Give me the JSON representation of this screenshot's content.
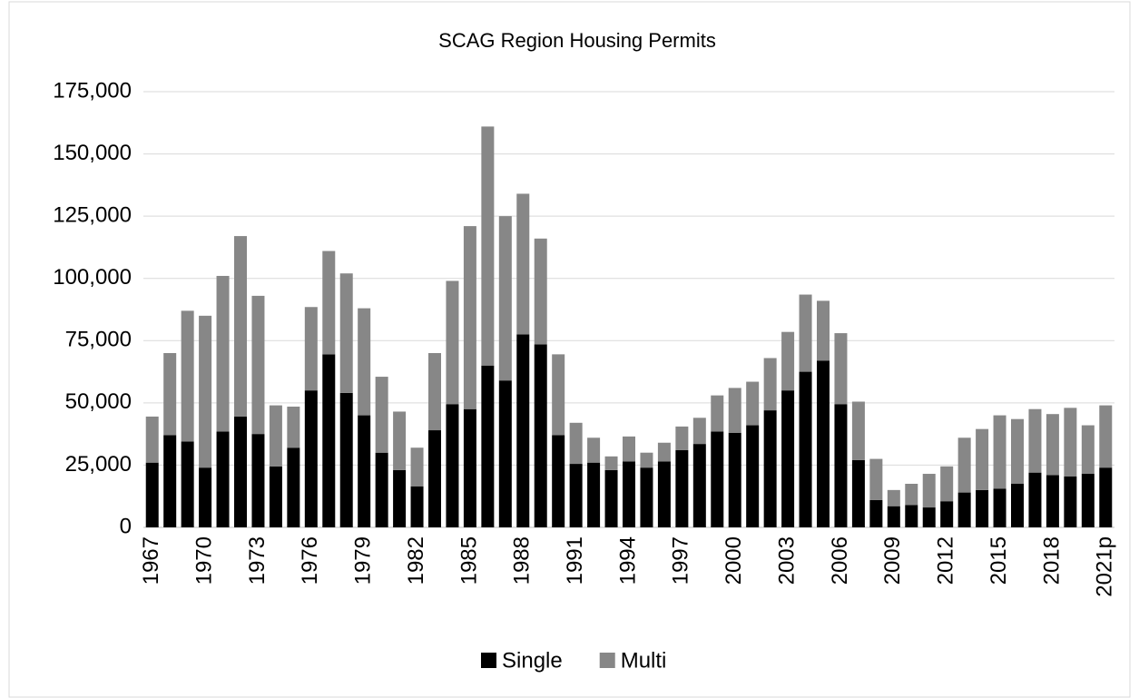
{
  "chart_data": {
    "type": "stacked_bar",
    "title": "SCAG Region Housing Permits",
    "categories": [
      "1967",
      null,
      null,
      "1970",
      null,
      null,
      "1973",
      null,
      null,
      "1976",
      null,
      null,
      "1979",
      null,
      null,
      "1982",
      null,
      null,
      "1985",
      null,
      null,
      "1988",
      null,
      null,
      "1991",
      null,
      null,
      "1994",
      null,
      null,
      "1997",
      null,
      null,
      "2000",
      null,
      null,
      "2003",
      null,
      null,
      "2006",
      null,
      null,
      "2009",
      null,
      null,
      "2012",
      null,
      null,
      "2015",
      null,
      null,
      "2018",
      null,
      null,
      "2021p"
    ],
    "series": [
      {
        "name": "Single",
        "color": "#000000",
        "values": [
          26000,
          37000,
          34500,
          24000,
          38500,
          44500,
          37500,
          24500,
          32000,
          55000,
          69500,
          54000,
          45000,
          30000,
          23000,
          16500,
          39000,
          49500,
          47500,
          65000,
          59000,
          77500,
          73500,
          37000,
          25500,
          26000,
          23000,
          26500,
          24000,
          26500,
          31000,
          33500,
          38500,
          38000,
          41000,
          47000,
          55000,
          62500,
          67000,
          49500,
          27000,
          11000,
          8500,
          9000,
          8000,
          10500,
          14000,
          15000,
          15500,
          17500,
          22000,
          21000,
          20500,
          21500,
          24000
        ]
      },
      {
        "name": "Multi",
        "color": "#878787",
        "values": [
          18500,
          33000,
          52500,
          61000,
          62500,
          72500,
          55500,
          24500,
          16500,
          33500,
          41500,
          48000,
          43000,
          30500,
          23500,
          15500,
          31000,
          49500,
          73500,
          96000,
          66000,
          56500,
          42500,
          32500,
          16500,
          10000,
          5500,
          10000,
          6000,
          7500,
          9500,
          10500,
          14500,
          18000,
          17500,
          21000,
          23500,
          31000,
          24000,
          28500,
          23500,
          16500,
          6500,
          8500,
          13500,
          14000,
          22000,
          24500,
          29500,
          26000,
          25500,
          24500,
          27500,
          19500,
          25000
        ]
      }
    ],
    "ylim": [
      0,
      175000
    ],
    "yticks": [
      0,
      {
        "value": 25000,
        "label": "25,000"
      },
      {
        "value": 50000,
        "label": "50,000"
      },
      {
        "value": 75000,
        "label": "75,000"
      },
      {
        "value": 100000,
        "label": "100,000"
      },
      {
        "value": 125000,
        "label": "125,000"
      },
      {
        "value": 150000,
        "label": "150,000"
      },
      {
        "value": 175000,
        "label": "175,000"
      }
    ],
    "grid": true,
    "legend": "bottom"
  }
}
